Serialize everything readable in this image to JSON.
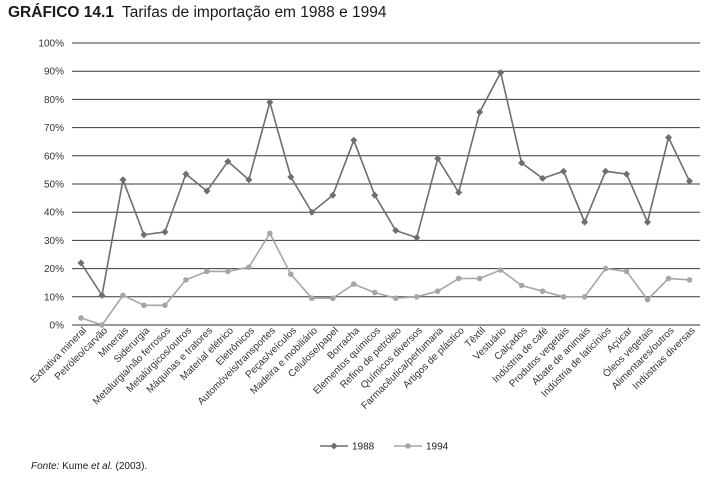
{
  "figure": {
    "number": "GRÁFICO 14.1",
    "title": "Tarifas de importação em 1988 e 1994",
    "source_prefix": "Fonte:",
    "source_text": "Kume",
    "source_italic": "et al.",
    "source_suffix": "(2003)."
  },
  "chart_data": {
    "type": "line",
    "title": "Tarifas de importação em 1988 e 1994",
    "xlabel": "",
    "ylabel": "",
    "ylim": [
      0,
      100
    ],
    "yticks": [
      "0%",
      "10%",
      "20%",
      "30%",
      "40%",
      "50%",
      "60%",
      "70%",
      "80%",
      "90%",
      "100%"
    ],
    "grid": true,
    "legend_position": "bottom",
    "categories": [
      "Extrativa mineral",
      "Petróleo/carvão",
      "Minerais",
      "Siderurgia",
      "Metalurgia/não ferrosos",
      "Metalúrgicos/outros",
      "Máquinas e tratores",
      "Material elétrico",
      "Eletrônicos",
      "Automóveis/transportes",
      "Peças/veículos",
      "Madeira e mobiliário",
      "Celulose/papel",
      "Borracha",
      "Elementos químicos",
      "Refino de petróleo",
      "Químicos diversos",
      "Farmacêutica/perfumaria",
      "Artigos de plástico",
      "Têxtil",
      "Vestuário",
      "Calçados",
      "Indústria de café",
      "Produtos vegetais",
      "Abate de animais",
      "Indústria de laticínios",
      "Açúcar",
      "Óleos vegetais",
      "Alimentares/outros",
      "Indústrias diversas"
    ],
    "series": [
      {
        "name": "1988",
        "color": "#6e6e6e",
        "marker": "diamond",
        "values": [
          22,
          10.5,
          51.5,
          32,
          33,
          53.5,
          47.5,
          58,
          51.5,
          79,
          52.5,
          40,
          46,
          65.5,
          46,
          33.5,
          31,
          59,
          47,
          75.5,
          89.5,
          57.5,
          52,
          54.5,
          36.5,
          54.5,
          53.5,
          36.5,
          66.5,
          51
        ]
      },
      {
        "name": "1994",
        "color": "#a6a6a6",
        "marker": "circle",
        "values": [
          2.5,
          0,
          10.5,
          7,
          7,
          16,
          19,
          19,
          20.5,
          32.5,
          18,
          9.5,
          9.5,
          14.5,
          11.5,
          9.5,
          10,
          12,
          16.5,
          16.5,
          19.5,
          14,
          12,
          10,
          10,
          20,
          19,
          9,
          16.5,
          16
        ]
      }
    ]
  }
}
